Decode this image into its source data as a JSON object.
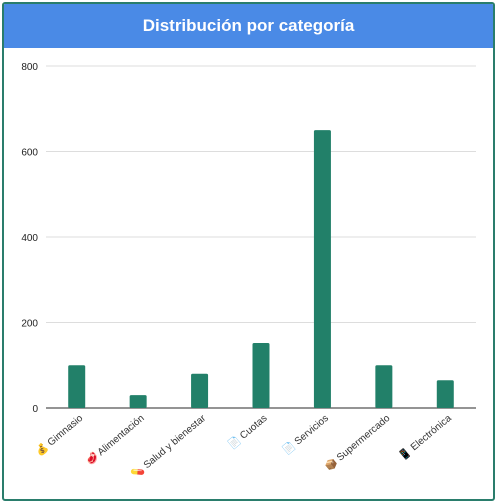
{
  "header": {
    "title": "Distribución por categoría"
  },
  "colors": {
    "header": "#4a8ae6",
    "bar": "#228069",
    "border": "#2a7d6c"
  },
  "chart_data": {
    "type": "bar",
    "title": "Distribución por categoría",
    "categories": [
      {
        "icon": "💰",
        "label": "Gimnasio"
      },
      {
        "icon": "🥩",
        "label": "Alimentación"
      },
      {
        "icon": "💊",
        "label": "Salud y bienestar"
      },
      {
        "icon": "📄",
        "label": "Cuotas"
      },
      {
        "icon": "📄",
        "label": "Servicios"
      },
      {
        "icon": "📦",
        "label": "Supermercado"
      },
      {
        "icon": "📱",
        "label": "Electrónica"
      }
    ],
    "values": [
      100,
      30,
      80,
      152,
      650,
      100,
      65
    ],
    "ylim": [
      0,
      800
    ],
    "yticks": [
      "0",
      "200",
      "400",
      "600",
      "800"
    ],
    "grid": true,
    "legend": "none"
  }
}
